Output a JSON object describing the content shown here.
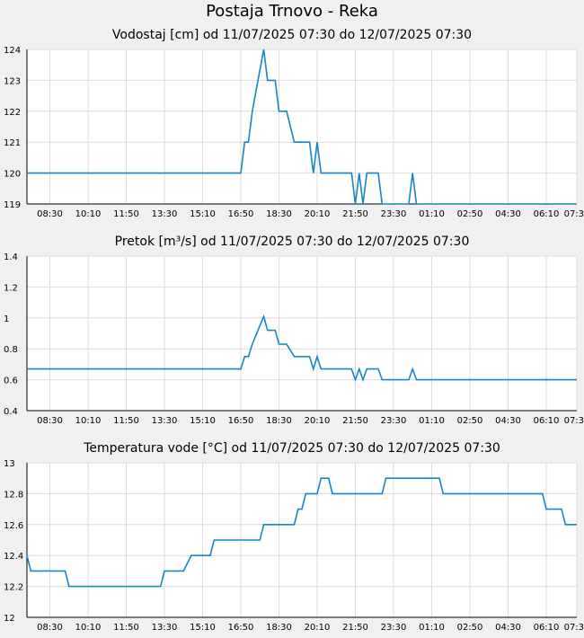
{
  "page": {
    "title": "Postaja Trnovo - Reka"
  },
  "chart_data": [
    {
      "type": "line",
      "title": "Vodostaj [cm] od 11/07/2025 07:30 do 12/07/2025 07:30",
      "xlabel": "",
      "ylabel": "",
      "xlim": [
        "07:30",
        "07:30 (+1 day)"
      ],
      "ylim": [
        119,
        124
      ],
      "y_ticks": [
        "119",
        "120",
        "121",
        "122",
        "123",
        "124"
      ],
      "x_ticks": [
        "08:30",
        "10:10",
        "11:50",
        "13:30",
        "15:10",
        "16:50",
        "18:30",
        "20:10",
        "21:50",
        "23:30",
        "01:10",
        "02:50",
        "04:30",
        "06:10",
        "07:30"
      ],
      "grid": true,
      "color": "#1586c8",
      "series": [
        {
          "x": [
            "07:30",
            "16:50",
            "17:00",
            "17:10",
            "17:20",
            "17:50",
            "18:00",
            "18:20",
            "18:30",
            "18:50",
            "19:10",
            "19:30",
            "19:50",
            "20:00",
            "20:10",
            "20:20",
            "21:30",
            "21:40",
            "21:50",
            "22:00",
            "22:10",
            "22:20",
            "22:50",
            "23:00",
            "23:10",
            "23:40",
            "00:10",
            "00:20",
            "00:30",
            "07:30"
          ],
          "y": [
            120,
            120,
            121,
            121,
            122,
            124,
            123,
            123,
            122,
            122,
            121,
            121,
            121,
            120,
            121,
            120,
            120,
            120,
            119,
            120,
            119,
            120,
            120,
            119,
            119,
            119,
            119,
            120,
            119,
            119
          ]
        }
      ]
    },
    {
      "type": "line",
      "title": "Pretok [m³/s] od 11/07/2025 07:30 do 12/07/2025 07:30",
      "xlabel": "",
      "ylabel": "",
      "xlim": [
        "07:30",
        "07:30 (+1 day)"
      ],
      "ylim": [
        0.4,
        1.4
      ],
      "y_ticks": [
        "0.4",
        "0.6",
        "0.8",
        "1",
        "1.2",
        "1.4"
      ],
      "x_ticks": [
        "08:30",
        "10:10",
        "11:50",
        "13:30",
        "15:10",
        "16:50",
        "18:30",
        "20:10",
        "21:50",
        "23:30",
        "01:10",
        "02:50",
        "04:30",
        "06:10",
        "07:30"
      ],
      "grid": true,
      "color": "#1586c8",
      "series": [
        {
          "x": [
            "07:30",
            "16:50",
            "17:00",
            "17:10",
            "17:20",
            "17:50",
            "18:00",
            "18:20",
            "18:30",
            "18:50",
            "19:10",
            "19:30",
            "19:50",
            "20:00",
            "20:10",
            "20:20",
            "21:30",
            "21:40",
            "21:50",
            "22:00",
            "22:10",
            "22:20",
            "22:50",
            "23:00",
            "23:10",
            "23:40",
            "00:10",
            "00:20",
            "00:30",
            "07:30"
          ],
          "y": [
            0.67,
            0.67,
            0.75,
            0.75,
            0.83,
            1.01,
            0.92,
            0.92,
            0.83,
            0.83,
            0.75,
            0.75,
            0.75,
            0.67,
            0.75,
            0.67,
            0.67,
            0.67,
            0.6,
            0.67,
            0.6,
            0.67,
            0.67,
            0.6,
            0.6,
            0.6,
            0.6,
            0.67,
            0.6,
            0.6
          ]
        }
      ]
    },
    {
      "type": "line",
      "title": "Temperatura vode [°C] od 11/07/2025 07:30 do 12/07/2025 07:30",
      "xlabel": "",
      "ylabel": "",
      "xlim": [
        "07:30",
        "07:30 (+1 day)"
      ],
      "ylim": [
        12,
        13
      ],
      "y_ticks": [
        "12",
        "12.2",
        "12.4",
        "12.6",
        "12.8",
        "13"
      ],
      "x_ticks": [
        "08:30",
        "10:10",
        "11:50",
        "13:30",
        "15:10",
        "16:50",
        "18:30",
        "20:10",
        "21:50",
        "23:30",
        "01:10",
        "02:50",
        "04:30",
        "06:10",
        "07:30"
      ],
      "grid": true,
      "color": "#1586c8",
      "series": [
        {
          "x": [
            "07:30",
            "07:40",
            "08:40",
            "09:10",
            "09:20",
            "13:20",
            "13:30",
            "14:20",
            "14:40",
            "15:30",
            "15:40",
            "17:40",
            "17:50",
            "19:10",
            "19:20",
            "19:30",
            "19:40",
            "20:10",
            "20:20",
            "20:40",
            "20:50",
            "22:50",
            "23:00",
            "23:10",
            "01:30",
            "01:40",
            "06:00",
            "06:10",
            "06:50",
            "07:00",
            "07:30"
          ],
          "y": [
            12.4,
            12.3,
            12.3,
            12.3,
            12.2,
            12.2,
            12.3,
            12.3,
            12.4,
            12.4,
            12.5,
            12.5,
            12.6,
            12.6,
            12.7,
            12.7,
            12.8,
            12.8,
            12.9,
            12.9,
            12.8,
            12.8,
            12.8,
            12.9,
            12.9,
            12.8,
            12.8,
            12.7,
            12.7,
            12.6,
            12.6
          ]
        }
      ]
    }
  ]
}
